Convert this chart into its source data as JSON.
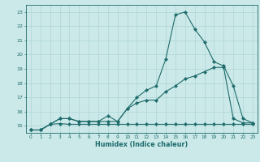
{
  "xlabel": "Humidex (Indice chaleur)",
  "background_color": "#cce9e9",
  "grid_color": "#add4d4",
  "line_color": "#1e6b6b",
  "xlim": [
    -0.5,
    23.5
  ],
  "ylim": [
    14.5,
    23.5
  ],
  "yticks": [
    15,
    16,
    17,
    18,
    19,
    20,
    21,
    22,
    23
  ],
  "xticks": [
    0,
    1,
    2,
    3,
    4,
    5,
    6,
    7,
    8,
    9,
    10,
    11,
    12,
    13,
    14,
    15,
    16,
    17,
    18,
    19,
    20,
    21,
    22,
    23
  ],
  "series1_x": [
    0,
    1,
    2,
    3,
    4,
    5,
    6,
    7,
    8,
    9,
    10,
    11,
    12,
    13,
    14,
    15,
    16,
    17,
    18,
    19,
    20,
    21,
    22,
    23
  ],
  "series1_y": [
    14.7,
    14.7,
    15.1,
    15.15,
    15.1,
    15.1,
    15.1,
    15.1,
    15.1,
    15.1,
    15.1,
    15.1,
    15.1,
    15.1,
    15.1,
    15.1,
    15.1,
    15.1,
    15.1,
    15.1,
    15.1,
    15.1,
    15.1,
    15.1
  ],
  "series2_x": [
    0,
    1,
    2,
    3,
    4,
    5,
    6,
    7,
    8,
    9,
    10,
    11,
    12,
    13,
    14,
    15,
    16,
    17,
    18,
    19,
    20,
    21,
    22,
    23
  ],
  "series2_y": [
    14.7,
    14.7,
    15.1,
    15.5,
    15.5,
    15.3,
    15.3,
    15.3,
    15.3,
    15.3,
    16.2,
    16.6,
    16.8,
    16.8,
    17.4,
    17.8,
    18.3,
    18.5,
    18.8,
    19.1,
    19.1,
    15.5,
    15.2,
    15.2
  ],
  "series3_x": [
    0,
    1,
    2,
    3,
    4,
    5,
    6,
    7,
    8,
    9,
    10,
    11,
    12,
    13,
    14,
    15,
    16,
    17,
    18,
    19,
    20,
    21,
    22,
    23
  ],
  "series3_y": [
    14.7,
    14.7,
    15.1,
    15.5,
    15.5,
    15.3,
    15.3,
    15.3,
    15.7,
    15.3,
    16.2,
    17.0,
    17.5,
    17.8,
    19.7,
    22.8,
    23.0,
    21.8,
    20.9,
    19.5,
    19.2,
    17.8,
    15.5,
    15.2
  ]
}
